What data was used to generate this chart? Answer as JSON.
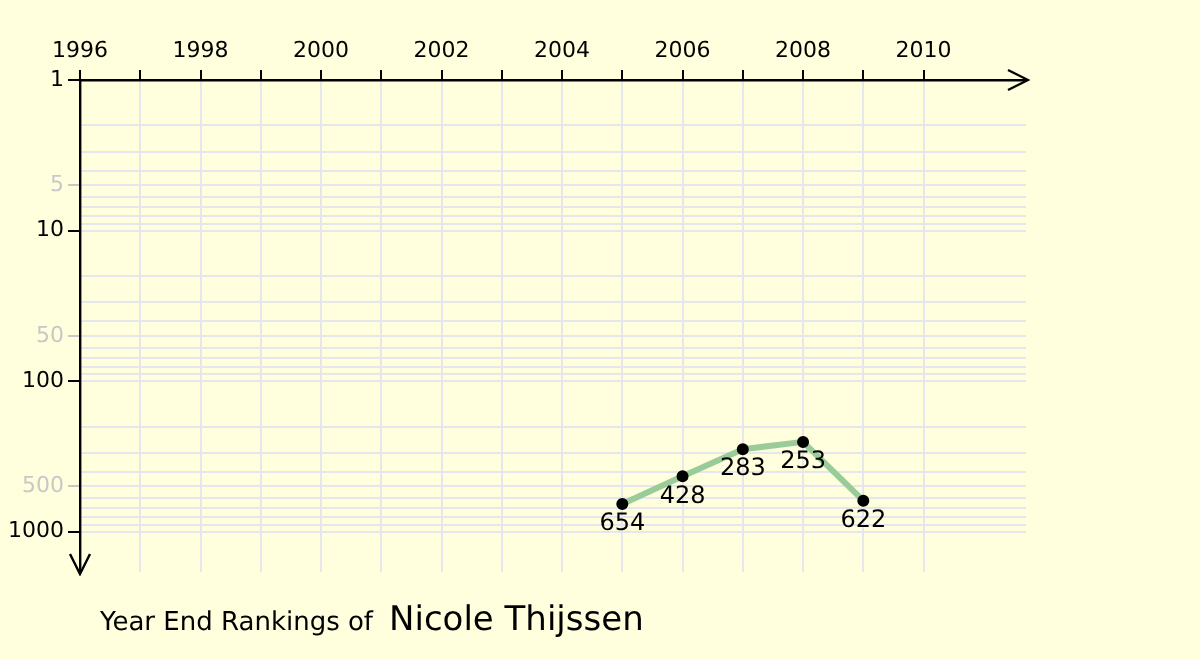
{
  "chart_data": {
    "type": "line",
    "title": "Year End Rankings of",
    "subtitle": "Nicole Thijssen",
    "x": [
      2005,
      2006,
      2007,
      2008,
      2009
    ],
    "series": [
      {
        "color": "#99cc99",
        "values": [
          654,
          428,
          283,
          253,
          622
        ]
      }
    ],
    "xlim": [
      1996,
      2011.7
    ],
    "xticks": [
      1996,
      {
        "value": 1997,
        "label": null
      },
      1998,
      {
        "value": 1999,
        "label": null
      },
      2000,
      {
        "value": 2001,
        "label": null
      },
      2002,
      {
        "value": 2003,
        "label": null
      },
      2004,
      {
        "value": 2005,
        "label": null
      },
      2006,
      {
        "value": 2007,
        "label": null
      },
      2008,
      {
        "value": 2009,
        "label": null
      },
      2010
    ],
    "ylim": [
      1850,
      1
    ],
    "yticks": [
      1,
      {
        "value": 2,
        "label": null
      },
      {
        "value": 3,
        "label": null
      },
      {
        "value": 4,
        "label": null
      },
      5,
      {
        "value": 6,
        "label": null
      },
      {
        "value": 7,
        "label": null
      },
      {
        "value": 8,
        "label": null
      },
      {
        "value": 9,
        "label": null
      },
      10,
      {
        "value": 20,
        "label": null
      },
      {
        "value": 30,
        "label": null
      },
      {
        "value": 40,
        "label": null
      },
      50,
      {
        "value": 60,
        "label": null
      },
      {
        "value": 70,
        "label": null
      },
      {
        "value": 80,
        "label": null
      },
      {
        "value": 90,
        "label": null
      },
      100,
      {
        "value": 200,
        "label": null
      },
      {
        "value": 300,
        "label": null
      },
      {
        "value": 400,
        "label": null
      },
      500,
      {
        "value": 600,
        "label": null
      },
      {
        "value": 700,
        "label": null
      },
      {
        "value": 800,
        "label": null
      },
      {
        "value": 900,
        "label": null
      },
      1000
    ],
    "log": "y",
    "grid": true,
    "legend": false,
    "marker": "circle",
    "line_style": "solid",
    "data_labels": true
  }
}
